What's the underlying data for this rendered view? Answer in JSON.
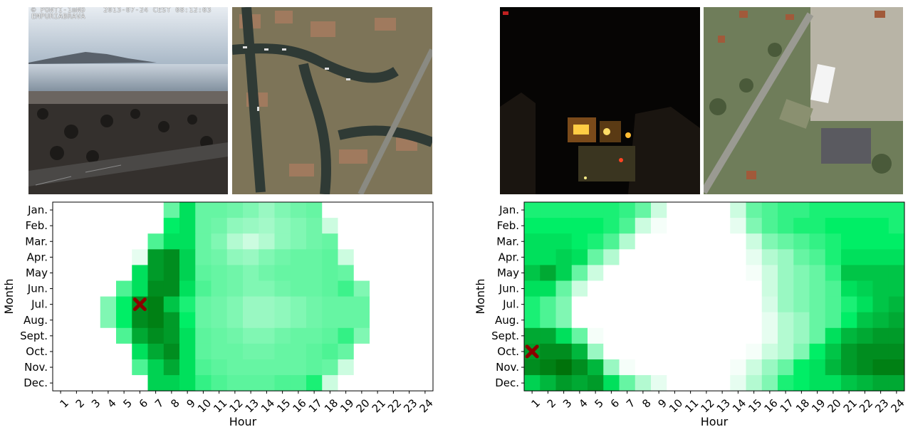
{
  "webcam_overlay": {
    "line1": "© PONTI-1mND    2013-07-24 CEST 08:12:03",
    "line2": "EMPURIABRAVA"
  },
  "webcam_logo": "",
  "chart_data": [
    {
      "type": "heatmap",
      "xlabel": "Hour",
      "ylabel": "Month",
      "x_ticks": [
        "1",
        "2",
        "3",
        "4",
        "5",
        "6",
        "7",
        "8",
        "9",
        "10",
        "11",
        "12",
        "13",
        "14",
        "15",
        "16",
        "17",
        "18",
        "19",
        "20",
        "21",
        "22",
        "23",
        "24"
      ],
      "y_ticks": [
        "Jan.",
        "Feb.",
        "Mar.",
        "Apr.",
        "May",
        "Jun.",
        "Jul.",
        "Aug.",
        "Sept.",
        "Oct.",
        "Nov.",
        "Dec."
      ],
      "marker": {
        "hour": 6,
        "month": "Jul.",
        "symbol": "X",
        "color": "#8b0000"
      },
      "colormap": [
        "#ffffff",
        "#00ee66",
        "#006400"
      ],
      "values": [
        [
          0,
          0,
          0,
          0,
          0,
          0,
          0,
          0.3,
          0.55,
          0.3,
          0.3,
          0.28,
          0.25,
          0.2,
          0.25,
          0.28,
          0.3,
          0,
          0,
          0,
          0,
          0,
          0,
          0
        ],
        [
          0,
          0,
          0,
          0,
          0,
          0,
          0,
          0.5,
          0.55,
          0.3,
          0.28,
          0.22,
          0.2,
          0.18,
          0.22,
          0.25,
          0.28,
          0.1,
          0,
          0,
          0,
          0,
          0,
          0
        ],
        [
          0,
          0,
          0,
          0,
          0,
          0,
          0.35,
          0.55,
          0.55,
          0.3,
          0.25,
          0.15,
          0.1,
          0.15,
          0.22,
          0.25,
          0.28,
          0.3,
          0,
          0,
          0,
          0,
          0,
          0
        ],
        [
          0,
          0,
          0,
          0,
          0,
          0.05,
          0.8,
          0.85,
          0.6,
          0.3,
          0.28,
          0.22,
          0.2,
          0.25,
          0.28,
          0.3,
          0.3,
          0.32,
          0.1,
          0,
          0,
          0,
          0,
          0
        ],
        [
          0,
          0,
          0,
          0,
          0,
          0.55,
          0.8,
          0.85,
          0.6,
          0.32,
          0.3,
          0.28,
          0.25,
          0.28,
          0.3,
          0.3,
          0.3,
          0.32,
          0.3,
          0,
          0,
          0,
          0,
          0
        ],
        [
          0,
          0,
          0,
          0,
          0.35,
          0.55,
          0.85,
          0.85,
          0.55,
          0.35,
          0.3,
          0.28,
          0.25,
          0.25,
          0.28,
          0.3,
          0.3,
          0.32,
          0.38,
          0.25,
          0,
          0,
          0,
          0
        ],
        [
          0,
          0,
          0,
          0.25,
          0.5,
          0.85,
          0.9,
          0.65,
          0.45,
          0.3,
          0.28,
          0.25,
          0.2,
          0.2,
          0.22,
          0.25,
          0.28,
          0.3,
          0.3,
          0.3,
          0,
          0,
          0,
          0
        ],
        [
          0,
          0,
          0,
          0.25,
          0.5,
          0.85,
          0.9,
          0.8,
          0.5,
          0.3,
          0.28,
          0.25,
          0.2,
          0.2,
          0.22,
          0.25,
          0.28,
          0.3,
          0.3,
          0.3,
          0,
          0,
          0,
          0
        ],
        [
          0,
          0,
          0,
          0,
          0.35,
          0.75,
          0.85,
          0.8,
          0.55,
          0.32,
          0.3,
          0.28,
          0.25,
          0.25,
          0.28,
          0.3,
          0.3,
          0.32,
          0.4,
          0.25,
          0,
          0,
          0,
          0
        ],
        [
          0,
          0,
          0,
          0,
          0,
          0.55,
          0.75,
          0.85,
          0.55,
          0.32,
          0.3,
          0.3,
          0.28,
          0.28,
          0.3,
          0.3,
          0.32,
          0.35,
          0.3,
          0,
          0,
          0,
          0,
          0
        ],
        [
          0,
          0,
          0,
          0,
          0,
          0.35,
          0.6,
          0.75,
          0.55,
          0.35,
          0.32,
          0.3,
          0.3,
          0.3,
          0.3,
          0.3,
          0.32,
          0.3,
          0.1,
          0,
          0,
          0,
          0,
          0
        ],
        [
          0,
          0,
          0,
          0,
          0,
          0,
          0.6,
          0.6,
          0.55,
          0.4,
          0.35,
          0.32,
          0.32,
          0.32,
          0.35,
          0.35,
          0.45,
          0.1,
          0,
          0,
          0,
          0,
          0,
          0
        ]
      ]
    },
    {
      "type": "heatmap",
      "xlabel": "Hour",
      "ylabel": "Month",
      "x_ticks": [
        "1",
        "2",
        "3",
        "4",
        "5",
        "6",
        "7",
        "8",
        "9",
        "10",
        "11",
        "12",
        "13",
        "14",
        "15",
        "16",
        "17",
        "18",
        "19",
        "20",
        "21",
        "22",
        "23",
        "24"
      ],
      "y_ticks": [
        "Jan.",
        "Feb.",
        "Mar.",
        "Apr.",
        "May",
        "Jun.",
        "Jul.",
        "Aug.",
        "Sept.",
        "Oct.",
        "Nov.",
        "Dec."
      ],
      "marker": {
        "hour": 1,
        "month": "Oct.",
        "symbol": "X",
        "color": "#8b0000"
      },
      "colormap": [
        "#ffffff",
        "#00ee66",
        "#006400"
      ],
      "values": [
        [
          0.45,
          0.45,
          0.45,
          0.45,
          0.45,
          0.45,
          0.4,
          0.3,
          0.1,
          0,
          0,
          0,
          0,
          0.1,
          0.3,
          0.35,
          0.4,
          0.4,
          0.45,
          0.45,
          0.45,
          0.45,
          0.45,
          0.45
        ],
        [
          0.5,
          0.5,
          0.5,
          0.5,
          0.5,
          0.45,
          0.35,
          0.1,
          0.02,
          0,
          0,
          0,
          0,
          0.05,
          0.25,
          0.35,
          0.4,
          0.45,
          0.45,
          0.5,
          0.5,
          0.5,
          0.5,
          0.45
        ],
        [
          0.55,
          0.55,
          0.55,
          0.5,
          0.45,
          0.35,
          0.15,
          0,
          0,
          0,
          0,
          0,
          0,
          0,
          0.1,
          0.25,
          0.3,
          0.35,
          0.4,
          0.45,
          0.5,
          0.5,
          0.5,
          0.5
        ],
        [
          0.55,
          0.55,
          0.6,
          0.55,
          0.3,
          0.15,
          0,
          0,
          0,
          0,
          0,
          0,
          0,
          0,
          0.05,
          0.15,
          0.2,
          0.3,
          0.35,
          0.45,
          0.55,
          0.55,
          0.55,
          0.55
        ],
        [
          0.65,
          0.75,
          0.6,
          0.3,
          0.1,
          0,
          0,
          0,
          0,
          0,
          0,
          0,
          0,
          0,
          0.02,
          0.1,
          0.2,
          0.25,
          0.3,
          0.4,
          0.65,
          0.65,
          0.65,
          0.65
        ],
        [
          0.55,
          0.55,
          0.3,
          0.1,
          0,
          0,
          0,
          0,
          0,
          0,
          0,
          0,
          0,
          0,
          0,
          0.1,
          0.2,
          0.25,
          0.3,
          0.35,
          0.55,
          0.6,
          0.65,
          0.65
        ],
        [
          0.45,
          0.35,
          0.25,
          0,
          0,
          0,
          0,
          0,
          0,
          0,
          0,
          0,
          0,
          0,
          0,
          0.08,
          0.2,
          0.25,
          0.3,
          0.35,
          0.45,
          0.55,
          0.65,
          0.7
        ],
        [
          0.45,
          0.35,
          0.25,
          0,
          0,
          0,
          0,
          0,
          0,
          0,
          0,
          0,
          0,
          0,
          0,
          0.05,
          0.15,
          0.2,
          0.3,
          0.35,
          0.5,
          0.65,
          0.7,
          0.75
        ],
        [
          0.75,
          0.75,
          0.55,
          0.3,
          0.02,
          0,
          0,
          0,
          0,
          0,
          0,
          0,
          0,
          0,
          0,
          0.05,
          0.15,
          0.2,
          0.3,
          0.55,
          0.7,
          0.75,
          0.8,
          0.8
        ],
        [
          0.8,
          0.85,
          0.85,
          0.7,
          0.2,
          0,
          0,
          0,
          0,
          0,
          0,
          0,
          0,
          0,
          0.02,
          0.1,
          0.15,
          0.25,
          0.5,
          0.65,
          0.8,
          0.85,
          0.85,
          0.85
        ],
        [
          0.85,
          0.9,
          0.95,
          0.85,
          0.7,
          0.2,
          0.02,
          0,
          0,
          0,
          0,
          0,
          0,
          0.02,
          0.1,
          0.2,
          0.3,
          0.5,
          0.55,
          0.7,
          0.8,
          0.85,
          0.9,
          0.9
        ],
        [
          0.6,
          0.7,
          0.8,
          0.75,
          0.8,
          0.55,
          0.3,
          0.15,
          0.05,
          0,
          0,
          0,
          0,
          0.05,
          0.15,
          0.25,
          0.45,
          0.5,
          0.55,
          0.55,
          0.65,
          0.7,
          0.75,
          0.75
        ]
      ]
    }
  ]
}
